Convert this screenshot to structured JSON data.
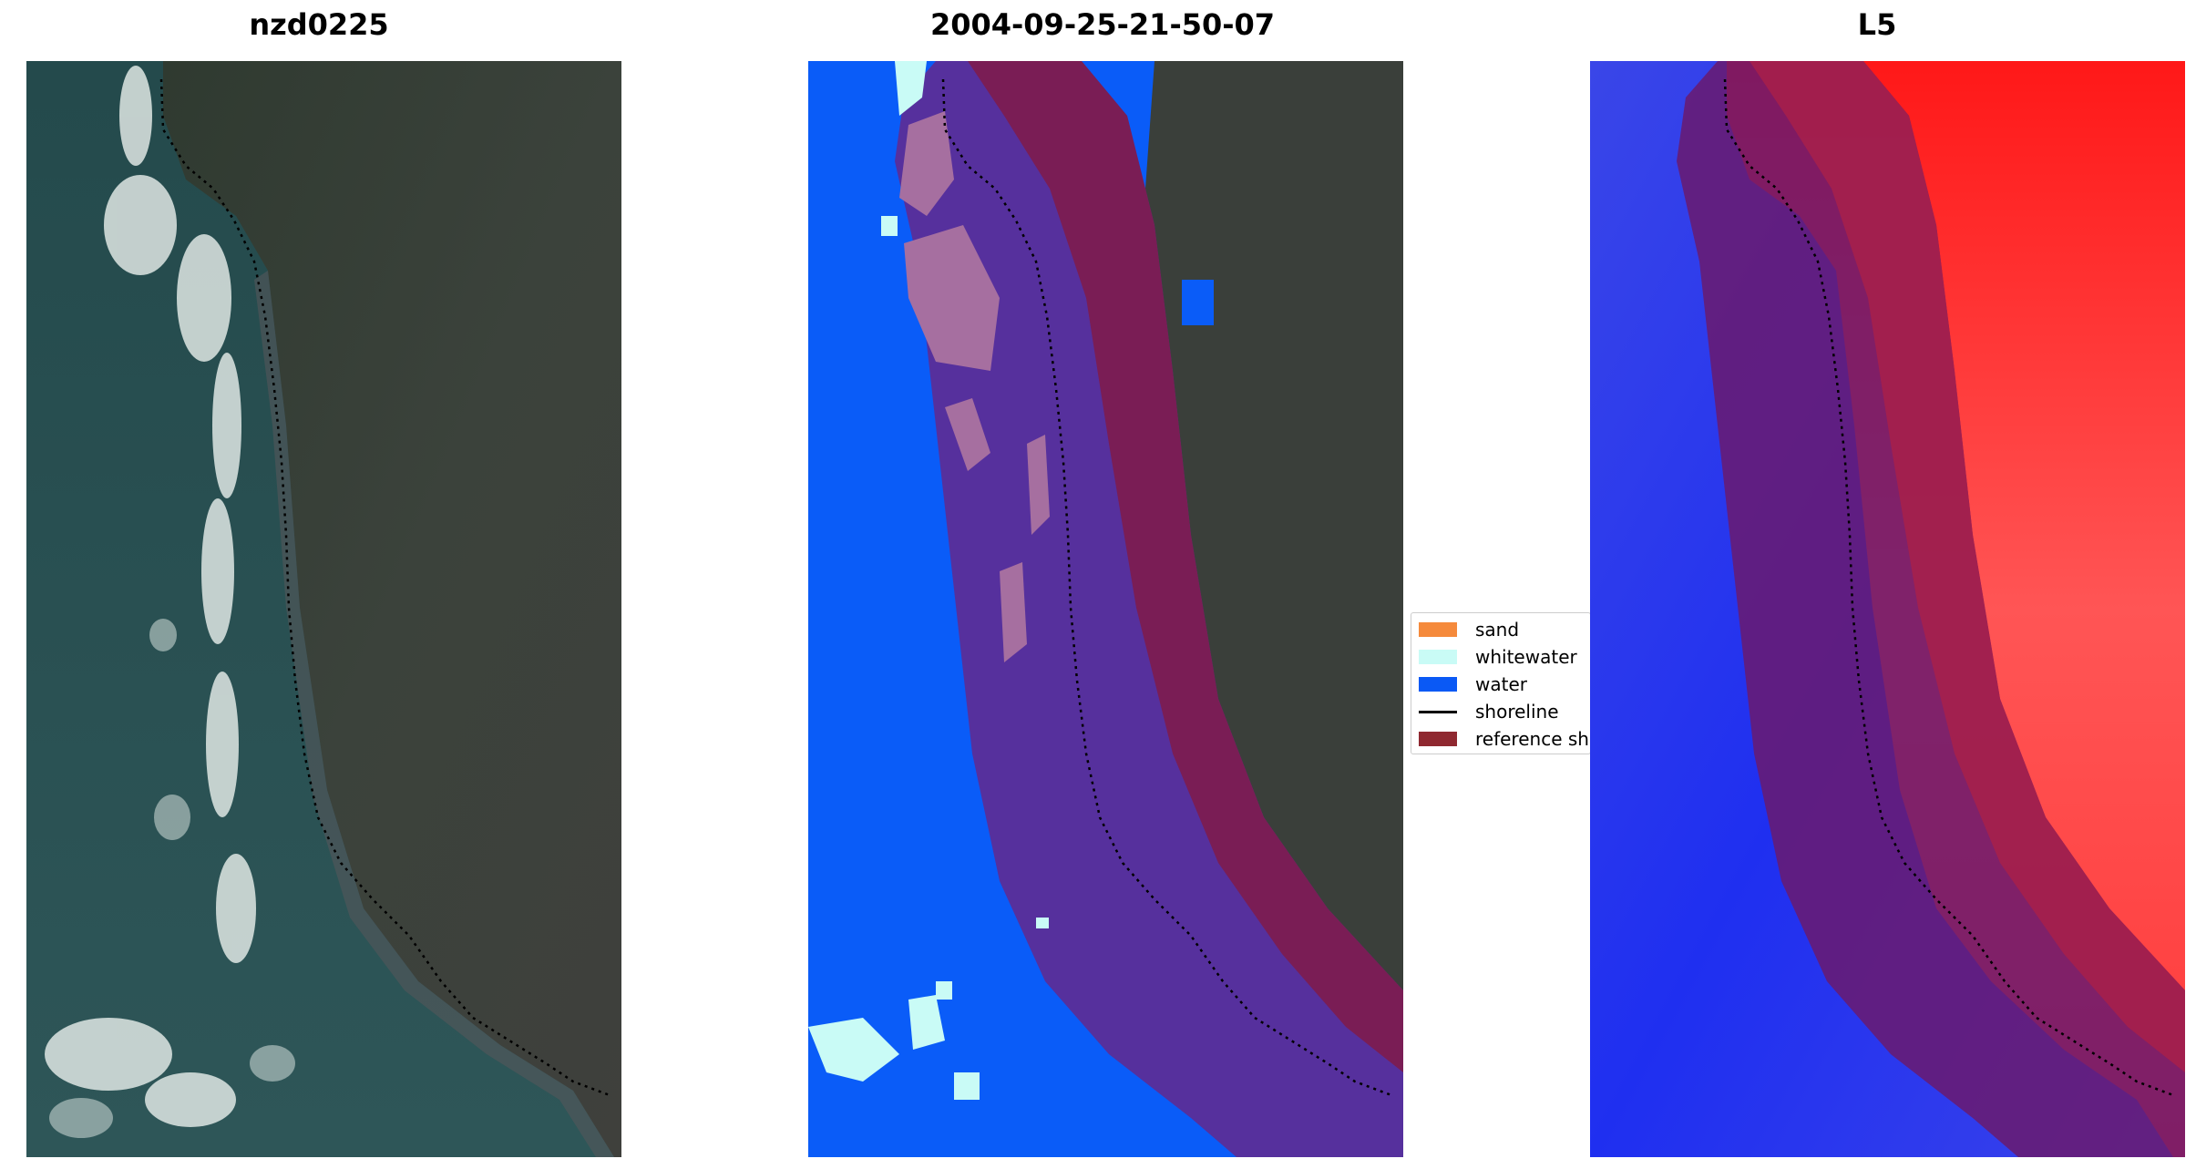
{
  "titles": {
    "left": "nzd0225",
    "middle": "2004-09-25-21-50-07",
    "right": "L5"
  },
  "legend": {
    "items": [
      {
        "label": "sand",
        "color": "#f58a3c",
        "kind": "patch"
      },
      {
        "label": "whitewater",
        "color": "#c9fbf6",
        "kind": "patch"
      },
      {
        "label": "water",
        "color": "#0a59f5",
        "kind": "patch"
      },
      {
        "label": "shoreline",
        "color": "#000000",
        "kind": "line"
      },
      {
        "label": "reference sh",
        "color": "#8f2830",
        "kind": "patch"
      }
    ]
  },
  "colors": {
    "ocean": "#2a4f54",
    "land": "#3a3f38",
    "water_class": "#0a5cf8",
    "reference_buffer": "#8f2830",
    "index_water": "#1f2fe8",
    "index_land": "#ff2a2a"
  }
}
